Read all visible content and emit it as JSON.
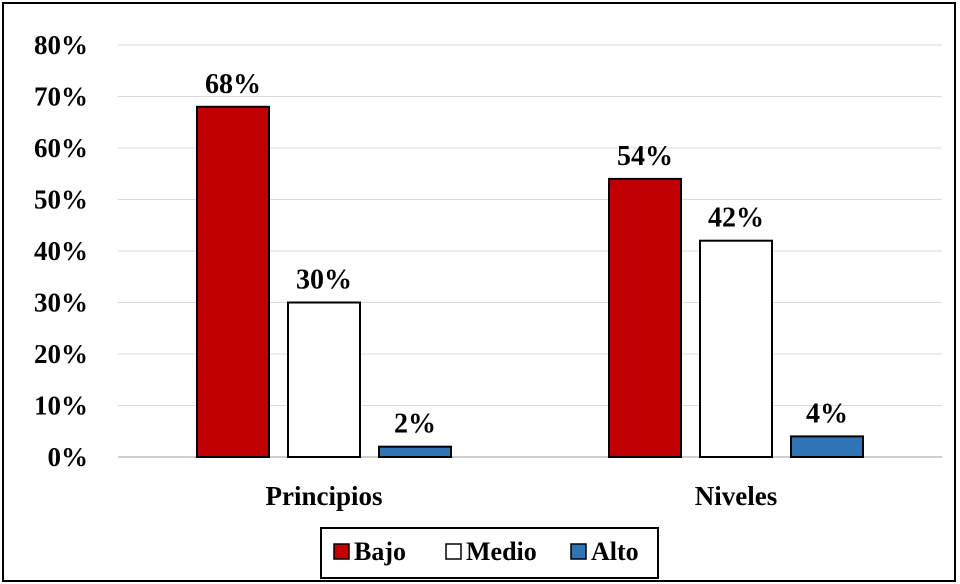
{
  "chart_data": {
    "type": "bar",
    "categories": [
      "Principios",
      "Niveles"
    ],
    "series": [
      {
        "name": "Bajo",
        "values": [
          68,
          54
        ],
        "color": "#c00000"
      },
      {
        "name": "Medio",
        "values": [
          30,
          42
        ],
        "color": "#ffffff"
      },
      {
        "name": "Alto",
        "values": [
          2,
          4
        ],
        "color": "#2e75b6"
      }
    ],
    "data_labels": [
      [
        "68%",
        "54%"
      ],
      [
        "30%",
        "42%"
      ],
      [
        "2%",
        "4%"
      ]
    ],
    "y_ticks": [
      0,
      10,
      20,
      30,
      40,
      50,
      60,
      70,
      80
    ],
    "y_tick_labels": [
      "0%",
      "10%",
      "20%",
      "30%",
      "40%",
      "50%",
      "60%",
      "70%",
      "80%"
    ],
    "ylim": [
      0,
      80
    ],
    "grid": true,
    "legend_position": "bottom"
  }
}
